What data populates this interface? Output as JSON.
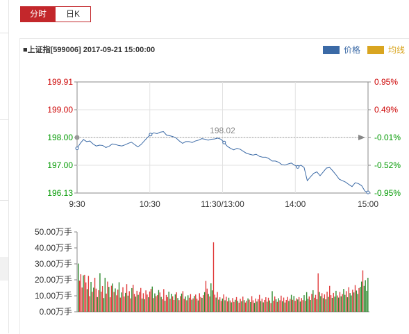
{
  "tabs": [
    {
      "label": "分时",
      "active": true
    },
    {
      "label": "日K",
      "active": false
    }
  ],
  "header": {
    "info": "■上证指[599006] 2017-09-21 15:00:00"
  },
  "legend": [
    {
      "label": "价格",
      "color": "#3b6aa6"
    },
    {
      "label": "均线",
      "color": "#d9a520"
    }
  ],
  "chart_data": [
    {
      "type": "line",
      "x_ticks": [
        "9:30",
        "10:30",
        "11:30/13:00",
        "14:00",
        "15:00"
      ],
      "price_ticks": [
        {
          "label": "199.91",
          "color": "#cc0000"
        },
        {
          "label": "199.00",
          "color": "#cc0000"
        },
        {
          "label": "198.00",
          "color": "#009900"
        },
        {
          "label": "197.00",
          "color": "#009900"
        },
        {
          "label": "196.13",
          "color": "#009900"
        }
      ],
      "pct_ticks": [
        {
          "label": "0.95%",
          "color": "#cc0000"
        },
        {
          "label": "0.49%",
          "color": "#cc0000"
        },
        {
          "label": "-0.01%",
          "color": "#009900"
        },
        {
          "label": "-0.52%",
          "color": "#009900"
        },
        {
          "label": "-0.95%",
          "color": "#009900"
        }
      ],
      "ylim": [
        196.13,
        199.91
      ],
      "reference_price": 198.02,
      "reference_label": "198.02",
      "series": [
        {
          "color": "#3b6aa6",
          "values": [
            197.65,
            197.82,
            197.95,
            197.88,
            197.9,
            197.8,
            197.73,
            197.76,
            197.75,
            197.68,
            197.72,
            197.8,
            197.78,
            197.75,
            197.73,
            197.77,
            197.82,
            197.86,
            197.78,
            197.7,
            197.78,
            197.9,
            198.02,
            198.12,
            198.18,
            198.15,
            198.2,
            198.22,
            198.1,
            198.08,
            198.05,
            198.0,
            197.9,
            197.82,
            197.88,
            197.88,
            197.85,
            197.9,
            197.93,
            197.98,
            197.96,
            197.93,
            197.96,
            197.97,
            198.0,
            197.96,
            197.85,
            197.72,
            197.65,
            197.6,
            197.65,
            197.62,
            197.55,
            197.48,
            197.45,
            197.42,
            197.45,
            197.38,
            197.35,
            197.35,
            197.3,
            197.22,
            197.22,
            197.18,
            197.1,
            197.08,
            197.12,
            197.15,
            197.08,
            197.02,
            197.08,
            197.0,
            196.55,
            196.68,
            196.8,
            196.85,
            196.72,
            196.85,
            196.98,
            197.0,
            196.88,
            196.75,
            196.6,
            196.55,
            196.5,
            196.42,
            196.35,
            196.48,
            196.45,
            196.38,
            196.2,
            196.15
          ]
        }
      ]
    },
    {
      "type": "bar",
      "title": "成交量",
      "y_ticks": [
        "50.00万手",
        "40.00万手",
        "30.00万手",
        "20.00万手",
        "10.00万手",
        "0.00万手"
      ],
      "ylim": [
        0,
        50
      ],
      "up_color": "#e03a3a",
      "down_color": "#2d8a2d",
      "values": [
        30.2,
        19.5,
        23.5,
        15.2,
        22.8,
        23.1,
        18.4,
        14.2,
        22.5,
        9.8,
        18.7,
        12.5,
        15.1,
        21.3,
        14.5,
        9.2,
        13.5,
        24.2,
        12.6,
        16.1,
        8.6,
        21.3,
        11.4,
        18.9,
        15.6,
        9.1,
        16.3,
        17.7,
        12.4,
        14.6,
        10.3,
        13.9,
        18.5,
        8.9,
        12.1,
        15.4,
        9.6,
        11.8,
        17.3,
        10.1,
        12.9,
        8.4,
        14.8,
        16.9,
        11.2,
        9.5,
        13.1,
        10.6,
        12.4,
        14.9,
        8.3,
        11.6,
        7.9,
        13.4,
        10.8,
        9.1,
        12.7,
        14.3,
        15.8,
        8.6,
        11.5,
        9.8,
        10.4,
        13.6,
        12.1,
        9.3,
        7.8,
        14.2,
        6.9,
        10.5,
        9.2,
        12.6,
        8.1,
        11.3,
        9.7,
        7.4,
        10.9,
        12.2,
        8.6,
        7.3,
        9.8,
        11.4,
        12.9,
        8.1,
        9.6,
        7.2,
        10.3,
        8.8,
        11.1,
        7.6,
        8.4,
        9.9,
        10.8,
        8.2,
        7.1,
        11.6,
        9.3,
        8.7,
        10.4,
        12.3,
        19.3,
        14.5,
        11.2,
        9.6,
        17.8,
        13.4,
        43.5,
        10.7,
        8.9,
        12.4,
        7.6,
        9.1,
        6.8,
        8.3,
        10.9,
        7.2,
        9.4,
        6.5,
        8.8,
        7.1,
        5.9,
        8.6,
        6.2,
        7.5,
        9.2,
        6.8,
        5.7,
        8.1,
        6.6,
        9.5,
        7.3,
        5.8,
        6.9,
        8.4,
        7.6,
        6.1,
        9.8,
        7.2,
        5.6,
        8.3,
        6.4,
        7.9,
        10.6,
        6.7,
        8.2,
        5.9,
        7.4,
        9.1,
        6.3,
        8.8,
        7.1,
        5.5,
        12.9,
        6.9,
        9.6,
        7.8,
        6.2,
        8.5,
        7.2,
        10.1,
        6.6,
        8.9,
        5.8,
        7.4,
        9.3,
        6.8,
        8.1,
        10.6,
        7.5,
        9.9,
        6.9,
        8.4,
        7.7,
        9.2,
        6.4,
        8.6,
        7.3,
        10.4,
        6.9,
        12.3,
        8.1,
        9.6,
        7.4,
        11.2,
        13.5,
        8.8,
        10.6,
        7.9,
        24.1,
        12.4,
        9.8,
        11.6,
        8.5,
        10.9,
        7.8,
        12.6,
        9.3,
        16.2,
        10.4,
        8.7,
        11.8,
        9.5,
        13.1,
        10.2,
        8.9,
        12.4,
        9.7,
        11.1,
        14.3,
        10.6,
        12.9,
        9.1,
        15.4,
        11.7,
        10.2,
        13.8,
        12.1,
        16.7,
        13.3,
        11.2,
        14.8,
        15.6,
        18.9,
        25.9,
        16.2,
        19.8,
        13.1,
        21.3
      ],
      "up": [
        0,
        1,
        1,
        1,
        0,
        1,
        1,
        0,
        1,
        1,
        0,
        1,
        0,
        1,
        1,
        0,
        1,
        0,
        1,
        1,
        0,
        0,
        1,
        1,
        0,
        1,
        1,
        0,
        1,
        0,
        1,
        1,
        0,
        1,
        0,
        1,
        1,
        0,
        1,
        0,
        1,
        1,
        0,
        1,
        1,
        0,
        1,
        0,
        1,
        1,
        0,
        1,
        0,
        1,
        1,
        0,
        1,
        1,
        0,
        1,
        0,
        1,
        1,
        0,
        1,
        0,
        1,
        1,
        0,
        1,
        1,
        0,
        1,
        0,
        1,
        1,
        0,
        1,
        0,
        1,
        1,
        0,
        1,
        1,
        0,
        1,
        0,
        1,
        1,
        0,
        1,
        0,
        1,
        1,
        0,
        1,
        1,
        0,
        1,
        0,
        1,
        1,
        0,
        1,
        0,
        0,
        1,
        1,
        0,
        1,
        0,
        1,
        1,
        0,
        1,
        0,
        1,
        1,
        0,
        1,
        0,
        1,
        1,
        0,
        1,
        0,
        1,
        1,
        0,
        1,
        0,
        1,
        1,
        0,
        1,
        0,
        1,
        1,
        0,
        1,
        0,
        1,
        1,
        0,
        1,
        0,
        1,
        1,
        0,
        1,
        0,
        1,
        0,
        1,
        1,
        0,
        1,
        0,
        1,
        1,
        0,
        1,
        0,
        1,
        1,
        0,
        1,
        0,
        1,
        0,
        1,
        1,
        0,
        1,
        0,
        1,
        1,
        0,
        1,
        0,
        0,
        1,
        0,
        1,
        0,
        1,
        1,
        0,
        1,
        0,
        0,
        1,
        0,
        1,
        0,
        1,
        0,
        1,
        1,
        0,
        1,
        0,
        0,
        1,
        0,
        1,
        0,
        1,
        0,
        0,
        1,
        0,
        1,
        0,
        0,
        1,
        0,
        1,
        0,
        0,
        1,
        0,
        0,
        1,
        0,
        0
      ]
    }
  ]
}
